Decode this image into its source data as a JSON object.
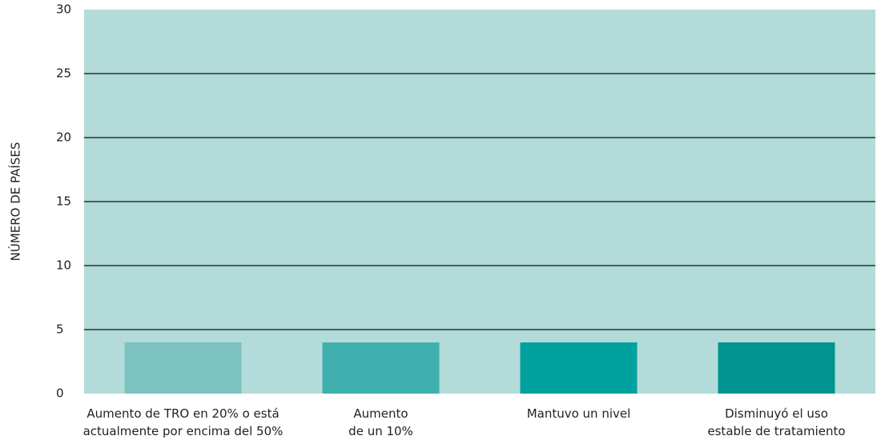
{
  "chart_data": {
    "type": "bar",
    "ylabel": "NÚMERO DE PAÍSES",
    "categories": [
      [
        "Aumento de TRO en 20% o está",
        "actualmente por encima del 50%"
      ],
      [
        "Aumento",
        "de un 10%"
      ],
      [
        "Mantuvo un nivel"
      ],
      [
        "Disminuyó el uso",
        "estable de tratamiento"
      ]
    ],
    "values": [
      4,
      4,
      4,
      4
    ],
    "colors": [
      "#7cc2c0",
      "#40b0af",
      "#00a19e",
      "#009490"
    ],
    "background": "#b3dbd9",
    "ylim": [
      0,
      30
    ],
    "yticks": [
      0,
      5,
      10,
      15,
      20,
      25,
      30
    ],
    "grid": true
  }
}
